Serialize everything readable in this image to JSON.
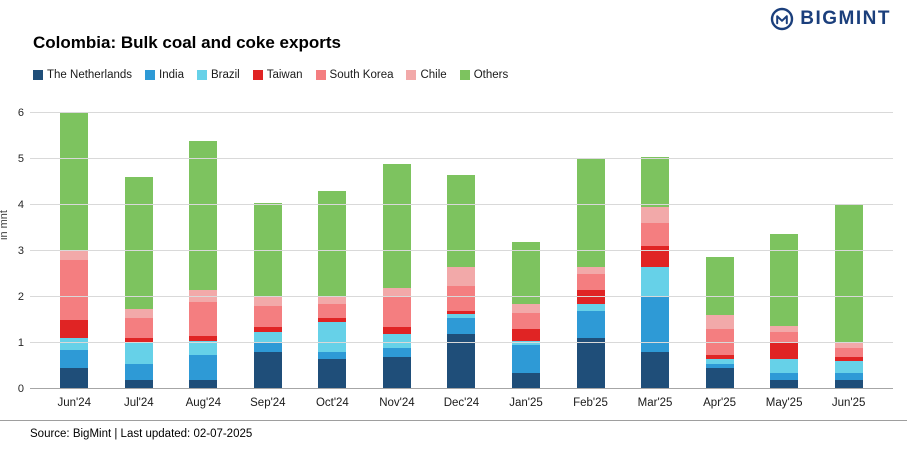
{
  "header": {
    "brand": "BIGMINT",
    "title": "Colombia: Bulk coal and coke exports"
  },
  "footer": {
    "source": "Source: BigMint | Last updated: 02-07-2025"
  },
  "chart_data": {
    "type": "bar",
    "stacked": true,
    "title": "Colombia: Bulk coal and coke exports",
    "ylabel": "in mnt",
    "ylim": [
      0,
      6
    ],
    "yticks": [
      0,
      1,
      2,
      3,
      4,
      5,
      6
    ],
    "grid": true,
    "legend_position": "top",
    "categories": [
      "Jun'24",
      "Jul'24",
      "Aug'24",
      "Sep'24",
      "Oct'24",
      "Nov'24",
      "Dec'24",
      "Jan'25",
      "Feb'25",
      "Mar'25",
      "Apr'25",
      "May'25",
      "Jun'25"
    ],
    "series": [
      {
        "name": "The Netherlands",
        "color": "#1f4e79",
        "values": [
          0.45,
          0.2,
          0.2,
          0.8,
          0.65,
          0.7,
          1.2,
          0.35,
          1.1,
          0.8,
          0.45,
          0.2,
          0.2
        ]
      },
      {
        "name": "India",
        "color": "#2e9ad6",
        "values": [
          0.4,
          0.35,
          0.55,
          0.2,
          0.15,
          0.2,
          0.35,
          0.6,
          0.6,
          1.2,
          0.1,
          0.15,
          0.15
        ]
      },
      {
        "name": "Brazil",
        "color": "#66d1e8",
        "values": [
          0.25,
          0.45,
          0.3,
          0.25,
          0.65,
          0.3,
          0.08,
          0.1,
          0.15,
          0.65,
          0.1,
          0.3,
          0.25
        ]
      },
      {
        "name": "Taiwan",
        "color": "#e02424",
        "values": [
          0.4,
          0.1,
          0.1,
          0.1,
          0.1,
          0.15,
          0.07,
          0.25,
          0.3,
          0.45,
          0.1,
          0.35,
          0.1
        ]
      },
      {
        "name": "South Korea",
        "color": "#f47e80",
        "values": [
          1.3,
          0.45,
          0.75,
          0.45,
          0.3,
          0.65,
          0.55,
          0.35,
          0.35,
          0.5,
          0.55,
          0.25,
          0.2
        ]
      },
      {
        "name": "Chile",
        "color": "#f2a9a9",
        "values": [
          0.2,
          0.2,
          0.25,
          0.2,
          0.15,
          0.2,
          0.4,
          0.2,
          0.15,
          0.35,
          0.3,
          0.12,
          0.1
        ]
      },
      {
        "name": "Others",
        "color": "#7dc35f",
        "values": [
          3.0,
          2.85,
          3.25,
          2.05,
          2.3,
          2.7,
          2.0,
          1.35,
          2.35,
          1.1,
          1.28,
          2.0,
          3.03
        ]
      }
    ]
  }
}
